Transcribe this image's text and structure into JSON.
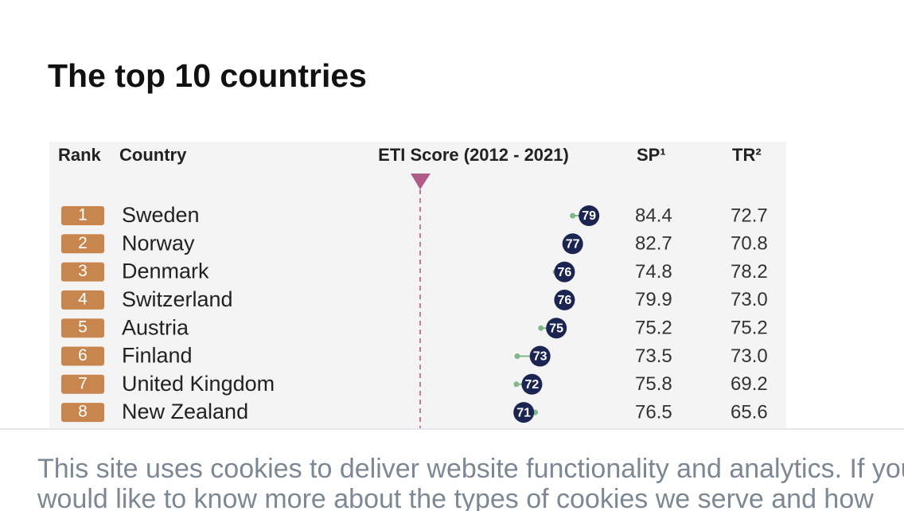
{
  "page": {
    "title": "The top 10 countries"
  },
  "table": {
    "headers": [
      "Rank",
      "Country",
      "ETI Score (2012 - 2021)",
      "SP¹",
      "TR²"
    ],
    "rows": [
      {
        "rank": "1",
        "country": "Sweden",
        "score": 79,
        "score_2012": 77.0,
        "sp": "84.4",
        "tr": "72.7"
      },
      {
        "rank": "2",
        "country": "Norway",
        "score": 77,
        "score_2012": 76.3,
        "sp": "82.7",
        "tr": "70.8"
      },
      {
        "rank": "3",
        "country": "Denmark",
        "score": 76,
        "score_2012": 74.9,
        "sp": "74.8",
        "tr": "78.2"
      },
      {
        "rank": "4",
        "country": "Switzerland",
        "score": 76,
        "score_2012": 75.4,
        "sp": "79.9",
        "tr": "73.0"
      },
      {
        "rank": "5",
        "country": "Austria",
        "score": 75,
        "score_2012": 73.1,
        "sp": "75.2",
        "tr": "75.2"
      },
      {
        "rank": "6",
        "country": "Finland",
        "score": 73,
        "score_2012": 70.2,
        "sp": "73.5",
        "tr": "73.0"
      },
      {
        "rank": "7",
        "country": "United Kingdom",
        "score": 72,
        "score_2012": 70.1,
        "sp": "75.8",
        "tr": "69.2"
      },
      {
        "rank": "8",
        "country": "New Zealand",
        "score": 71,
        "score_2012": 72.4,
        "sp": "76.5",
        "tr": "65.6"
      }
    ]
  },
  "cookie_banner": {
    "lines": [
      "This site uses cookies to deliver website functionality and analytics. If you",
      "would like to know more about the types of cookies we serve and how"
    ]
  }
}
